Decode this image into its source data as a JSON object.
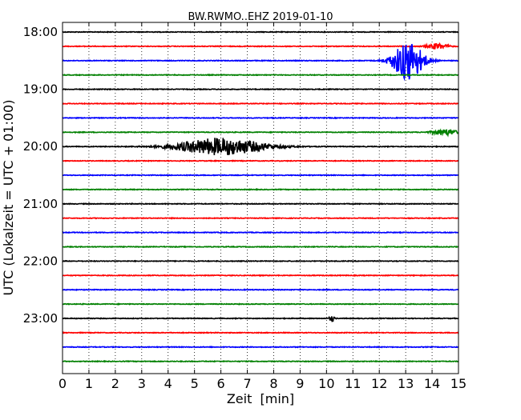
{
  "chart_data": {
    "type": "line",
    "title": "BW.RWMO..EHZ 2019-01-10",
    "xlabel": "Zeit  [min]",
    "ylabel": "UTC (Lokalzeit = UTC + 01:00)",
    "xlim": [
      0,
      15
    ],
    "x_ticks": [
      "0",
      "1",
      "2",
      "3",
      "4",
      "5",
      "6",
      "7",
      "8",
      "9",
      "10",
      "11",
      "12",
      "13",
      "14",
      "15"
    ],
    "y_tick_labels": [
      "18:00",
      "19:00",
      "20:00",
      "21:00",
      "22:00",
      "23:00"
    ],
    "y_tick_trace_index": [
      0,
      4,
      8,
      12,
      16,
      20
    ],
    "grid": true,
    "color_cycle": [
      "#000000",
      "#ff0000",
      "#0000ff",
      "#008000"
    ],
    "traces": [
      {
        "start": "18:00",
        "events": []
      },
      {
        "start": "18:15",
        "events": [
          {
            "t": 14.2,
            "amp": 0.2,
            "dur": 0.8
          }
        ]
      },
      {
        "start": "18:30",
        "events": [
          {
            "t": 13.1,
            "amp": 1.4,
            "dur": 1.2
          }
        ]
      },
      {
        "start": "18:45",
        "events": []
      },
      {
        "start": "19:00",
        "events": []
      },
      {
        "start": "19:15",
        "events": []
      },
      {
        "start": "19:30",
        "events": []
      },
      {
        "start": "19:45",
        "events": [
          {
            "t": 14.5,
            "amp": 0.2,
            "dur": 1.0
          }
        ]
      },
      {
        "start": "20:00",
        "events": [
          {
            "t": 6.0,
            "amp": 0.6,
            "dur": 3.5
          }
        ]
      },
      {
        "start": "20:15",
        "events": []
      },
      {
        "start": "20:30",
        "events": []
      },
      {
        "start": "20:45",
        "events": []
      },
      {
        "start": "21:00",
        "events": []
      },
      {
        "start": "21:15",
        "events": []
      },
      {
        "start": "21:30",
        "events": []
      },
      {
        "start": "21:45",
        "events": []
      },
      {
        "start": "22:00",
        "events": []
      },
      {
        "start": "22:15",
        "events": []
      },
      {
        "start": "22:30",
        "events": []
      },
      {
        "start": "22:45",
        "events": []
      },
      {
        "start": "23:00",
        "events": [
          {
            "t": 10.2,
            "amp": 0.2,
            "dur": 0.2
          }
        ]
      },
      {
        "start": "23:15",
        "events": []
      },
      {
        "start": "23:30",
        "events": []
      },
      {
        "start": "23:45",
        "events": []
      }
    ]
  }
}
